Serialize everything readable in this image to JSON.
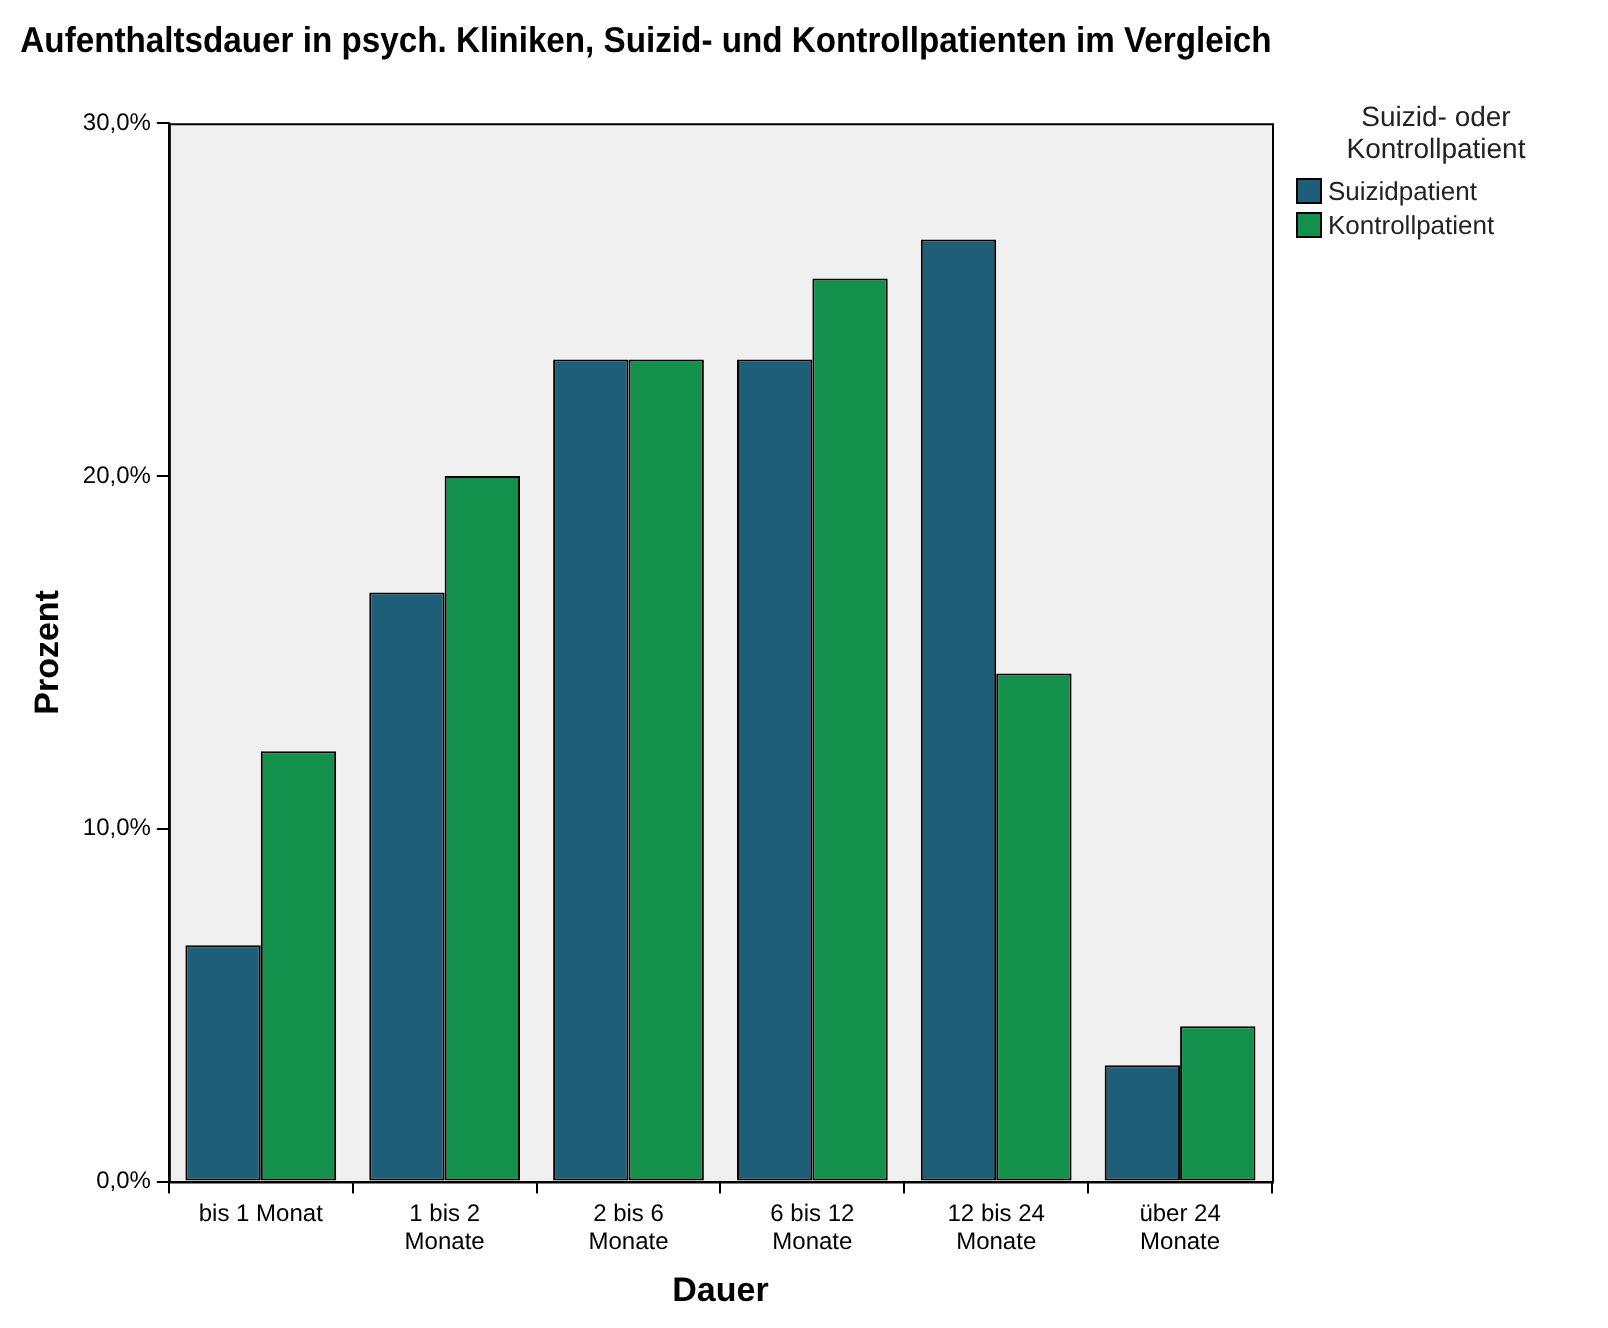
{
  "chart_data": {
    "type": "bar",
    "title": "Aufenthaltsdauer in psych. Kliniken, Suizid- und Kontrollpatienten im Vergleich",
    "xlabel": "Dauer",
    "ylabel": "Prozent",
    "legend_title": "Suizid- oder Kontrollpatient",
    "categories": [
      "bis 1 Monat",
      "1 bis 2 Monate",
      "2 bis 6 Monate",
      "6 bis 12 Monate",
      "12 bis 24 Monate",
      "über 24 Monate"
    ],
    "series": [
      {
        "name": "Suizidpatient",
        "color": "#1f5e78",
        "values": [
          6.7,
          16.7,
          23.3,
          23.3,
          26.7,
          3.3
        ]
      },
      {
        "name": "Kontrollpatient",
        "color": "#13904a",
        "values": [
          12.2,
          20.0,
          23.3,
          25.6,
          14.4,
          4.4
        ]
      }
    ],
    "ylim": [
      0,
      30
    ],
    "yticks": [
      {
        "value": 0,
        "label": "0,0%"
      },
      {
        "value": 10,
        "label": "10,0%"
      },
      {
        "value": 20,
        "label": "20,0%"
      },
      {
        "value": 30,
        "label": "30,0%"
      }
    ],
    "grid": false,
    "legend": "top right"
  }
}
